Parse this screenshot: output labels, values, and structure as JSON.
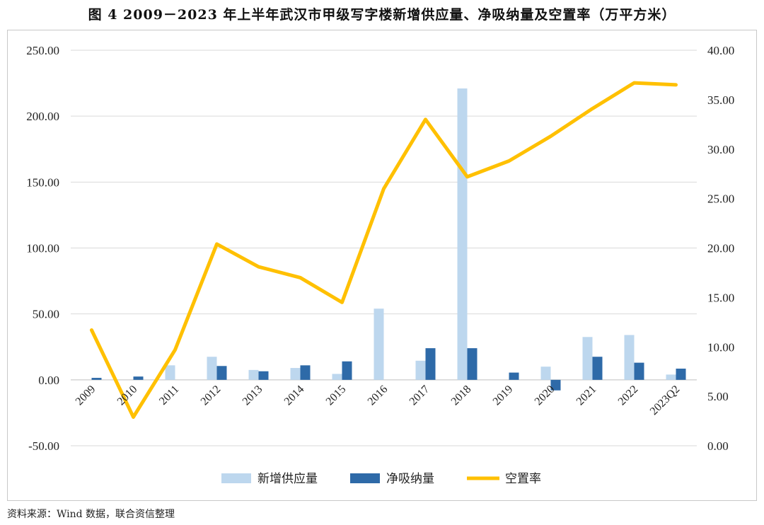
{
  "title": "图 4   2009－2023 年上半年武汉市甲级写字楼新增供应量、净吸纳量及空置率（万平方米）",
  "source": "资料来源：Wind 数据，联合资信整理",
  "chart_data": {
    "type": "bar+line",
    "categories": [
      "2009",
      "2010",
      "2011",
      "2012",
      "2013",
      "2014",
      "2015",
      "2016",
      "2017",
      "2018",
      "2019",
      "2020",
      "2021",
      "2022",
      "2023Q2"
    ],
    "series": [
      {
        "name": "新增供应量",
        "type": "bar",
        "axis": "left",
        "color": "#bdd7ee",
        "values": [
          0,
          0,
          11,
          17.5,
          7.5,
          9,
          4.5,
          54,
          14.5,
          221,
          0,
          10,
          32.5,
          34,
          4
        ]
      },
      {
        "name": "净吸纳量",
        "type": "bar",
        "axis": "left",
        "color": "#2e6aa8",
        "values": [
          1.5,
          2.5,
          0,
          10.5,
          6.5,
          11,
          14,
          0,
          24,
          24,
          5.5,
          -8,
          17.5,
          13,
          8.5
        ]
      },
      {
        "name": "空置率",
        "type": "line",
        "axis": "right",
        "color": "#ffc000",
        "values": [
          11.7,
          2.9,
          9.7,
          20.4,
          18.1,
          17.0,
          14.5,
          26.0,
          33.0,
          27.2,
          28.8,
          31.3,
          34.1,
          36.7,
          36.5
        ]
      }
    ],
    "y_left": {
      "min": -50,
      "max": 250,
      "ticks": [
        "-50.00",
        "0.00",
        "50.00",
        "100.00",
        "150.00",
        "200.00",
        "250.00"
      ]
    },
    "y_right": {
      "min": 0,
      "max": 40,
      "ticks": [
        "0.00",
        "5.00",
        "10.00",
        "15.00",
        "20.00",
        "25.00",
        "30.00",
        "35.00",
        "40.00"
      ]
    },
    "grid": "horizontal",
    "legend": "bottom"
  }
}
